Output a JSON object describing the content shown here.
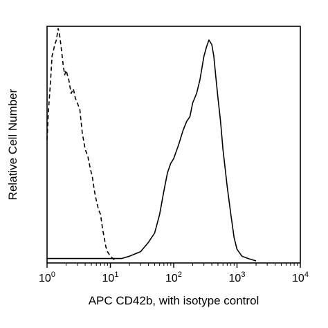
{
  "chart_data": {
    "type": "line",
    "xlabel": "APC CD42b, with isotype control",
    "ylabel": "Relative Cell Number",
    "x_scale": "log",
    "xlim": [
      1,
      10000
    ],
    "ylim": [
      0,
      100
    ],
    "grid": false,
    "x_ticks": [
      {
        "value": 1,
        "base": "10",
        "exp": "0"
      },
      {
        "value": 10,
        "base": "10",
        "exp": "1"
      },
      {
        "value": 100,
        "base": "10",
        "exp": "2"
      },
      {
        "value": 1000,
        "base": "10",
        "exp": "3"
      },
      {
        "value": 10000,
        "base": "10",
        "exp": "4"
      }
    ],
    "series": [
      {
        "style": "dashed",
        "color": "#000000",
        "x": [
          1.0,
          1.05,
          1.1,
          1.15,
          1.2,
          1.3,
          1.4,
          1.5,
          1.6,
          1.7,
          1.8,
          1.9,
          2.0,
          2.2,
          2.4,
          2.6,
          2.8,
          3.0,
          3.3,
          3.6,
          4.0,
          4.4,
          4.8,
          5.2,
          5.6,
          6.0,
          6.5,
          7.0,
          7.5,
          8.0,
          8.5,
          9.0,
          10.0,
          11.0,
          12.0
        ],
        "y": [
          52,
          64,
          72,
          80,
          88,
          92,
          95,
          100,
          96,
          90,
          84,
          80,
          82,
          78,
          72,
          74,
          70,
          68,
          65,
          55,
          48,
          45,
          40,
          36,
          30,
          26,
          22,
          20,
          14,
          10,
          6,
          4,
          2,
          1,
          0
        ]
      },
      {
        "style": "solid",
        "color": "#000000",
        "x": [
          1,
          3,
          5,
          8,
          10,
          15,
          20,
          30,
          40,
          50,
          60,
          70,
          80,
          90,
          100,
          120,
          140,
          160,
          180,
          200,
          230,
          260,
          300,
          330,
          360,
          400,
          430,
          460,
          500,
          550,
          600,
          700,
          800,
          900,
          1000,
          1200,
          1500,
          2000
        ],
        "y": [
          1,
          1,
          1,
          1,
          1,
          1,
          2,
          4,
          8,
          12,
          20,
          30,
          38,
          42,
          44,
          50,
          56,
          60,
          62,
          68,
          72,
          78,
          88,
          92,
          95,
          93,
          88,
          80,
          70,
          60,
          48,
          32,
          20,
          10,
          5,
          2,
          1,
          0
        ]
      }
    ]
  }
}
